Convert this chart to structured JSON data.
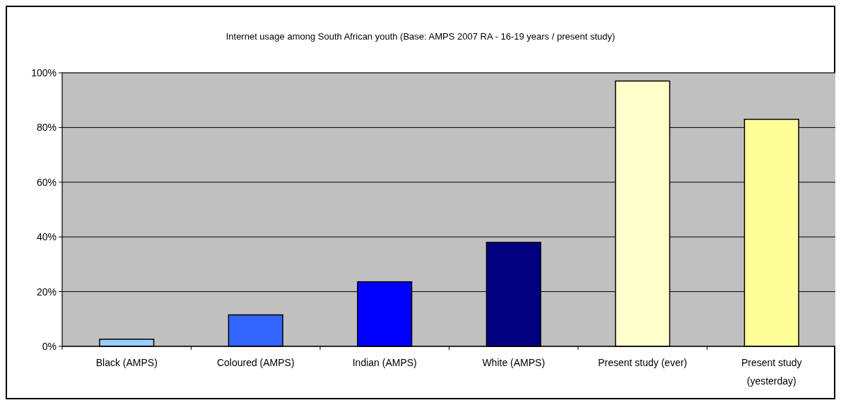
{
  "chart_data": {
    "type": "bar",
    "title": "Internet usage among South African youth (Base: AMPS 2007 RA - 16-19 years / present study)",
    "categories": [
      "Black (AMPS)",
      "Coloured (AMPS)",
      "Indian (AMPS)",
      "White (AMPS)",
      "Present study (ever)",
      "Present study (yesterday)"
    ],
    "values": [
      2.6,
      11.5,
      23.6,
      38,
      97,
      83
    ],
    "colors": [
      "#99ccff",
      "#3366ff",
      "#0000ff",
      "#000080",
      "#ffffcc",
      "#ffff99"
    ],
    "ylim": [
      0,
      100
    ],
    "yticks": [
      {
        "value": 0,
        "label": "0%"
      },
      {
        "value": 20,
        "label": "20%"
      },
      {
        "value": 40,
        "label": "40%"
      },
      {
        "value": 60,
        "label": "60%"
      },
      {
        "value": 80,
        "label": "80%"
      },
      {
        "value": 100,
        "label": "100%"
      }
    ],
    "grid": "y"
  }
}
